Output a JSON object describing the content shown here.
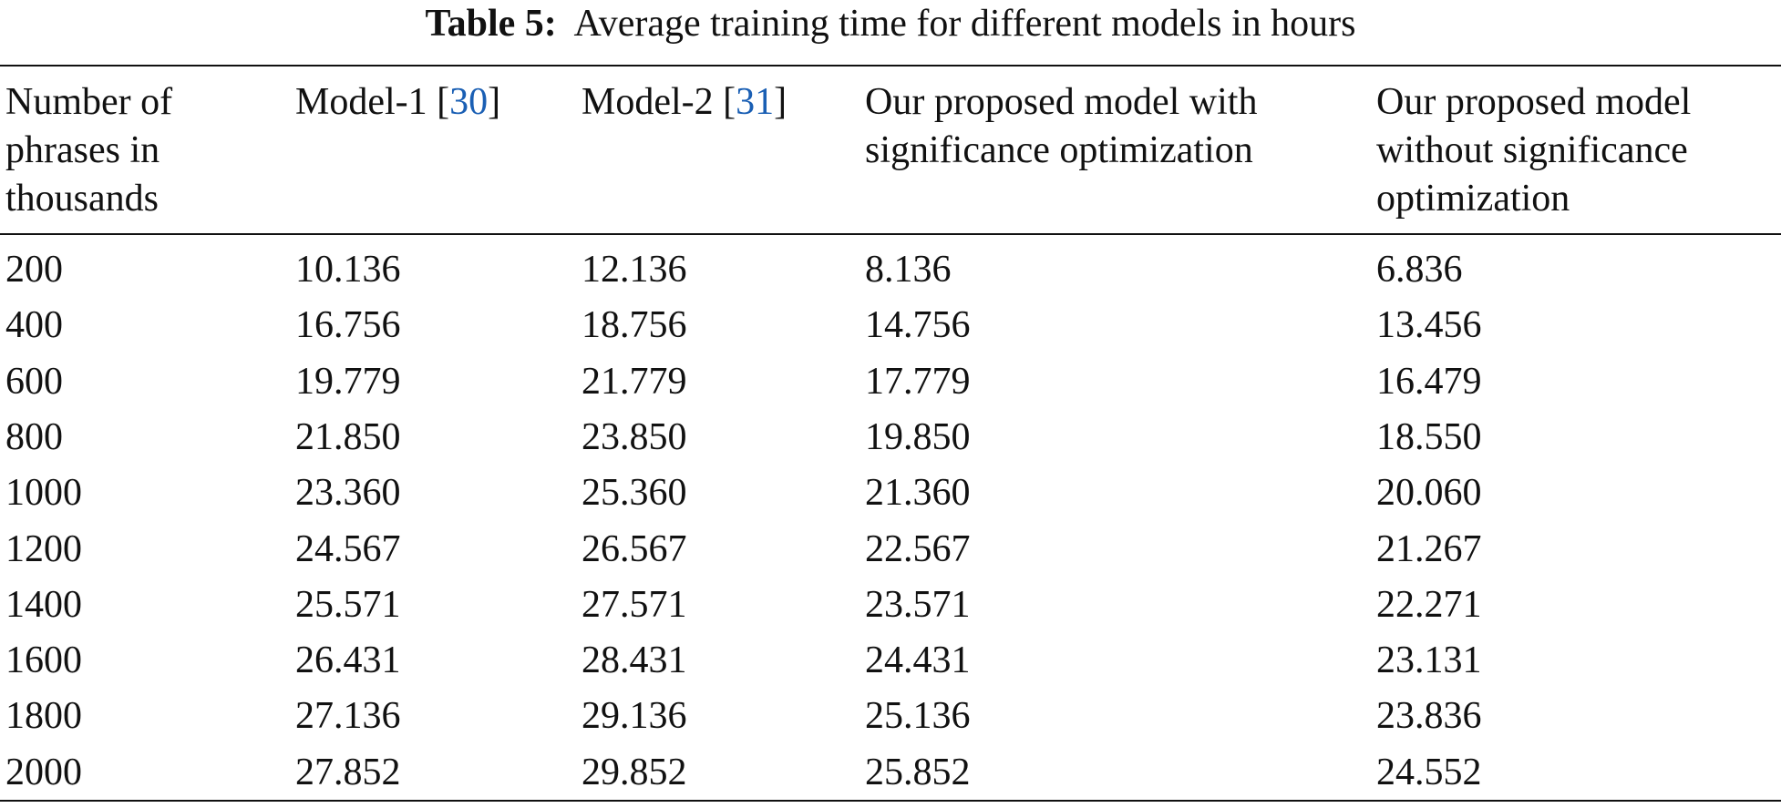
{
  "table": {
    "label": "Table 5:",
    "caption": "Average training time for different models in hours",
    "header": [
      [
        [
          "Number of"
        ],
        [
          "phrases in"
        ],
        [
          "thousands"
        ]
      ],
      [
        [
          "Model-1 [",
          "30",
          "]"
        ]
      ],
      [
        [
          "Model-2 [",
          "31",
          "]"
        ]
      ],
      [
        [
          "Our proposed model with"
        ],
        [
          "significance optimization"
        ]
      ],
      [
        [
          "Our proposed model"
        ],
        [
          "without significance"
        ],
        [
          "optimization"
        ]
      ]
    ],
    "rows": [
      [
        "200",
        "10.136",
        "12.136",
        "8.136",
        "6.836"
      ],
      [
        "400",
        "16.756",
        "18.756",
        "14.756",
        "13.456"
      ],
      [
        "600",
        "19.779",
        "21.779",
        "17.779",
        "16.479"
      ],
      [
        "800",
        "21.850",
        "23.850",
        "19.850",
        "18.550"
      ],
      [
        "1000",
        "23.360",
        "25.360",
        "21.360",
        "20.060"
      ],
      [
        "1200",
        "24.567",
        "26.567",
        "22.567",
        "21.267"
      ],
      [
        "1400",
        "25.571",
        "27.571",
        "23.571",
        "22.271"
      ],
      [
        "1600",
        "26.431",
        "28.431",
        "24.431",
        "23.131"
      ],
      [
        "1800",
        "27.136",
        "29.136",
        "25.136",
        "23.836"
      ],
      [
        "2000",
        "27.852",
        "29.852",
        "25.852",
        "24.552"
      ]
    ]
  }
}
